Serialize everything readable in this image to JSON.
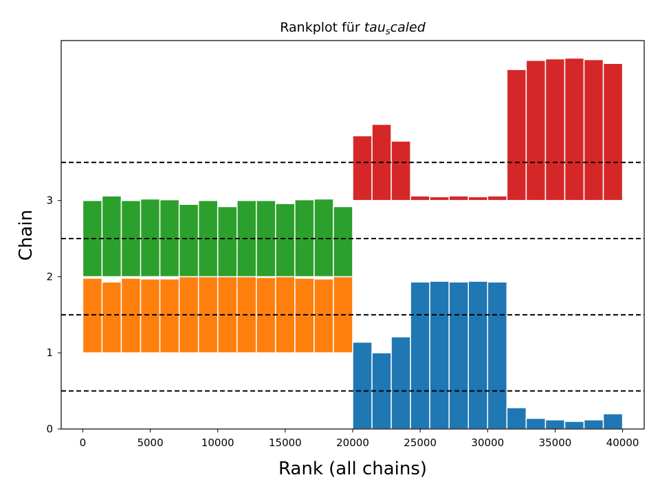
{
  "chart_data": {
    "type": "bar",
    "title_prefix": "Rankplot für ",
    "title_var": "tau",
    "title_sub": "s",
    "title_suffix": "caled",
    "xlabel": "Rank (all chains)",
    "ylabel": "Chain",
    "xlim": [
      -1600,
      41600
    ],
    "ylim": [
      0,
      5.1
    ],
    "xticks": [
      0,
      5000,
      10000,
      15000,
      20000,
      25000,
      30000,
      35000,
      40000
    ],
    "yticks": [
      0,
      1,
      2,
      3
    ],
    "reference_lines": [
      0.5,
      1.5,
      2.5,
      3.5
    ],
    "bin_edges": [
      0,
      1429,
      2857,
      4286,
      5714,
      7143,
      8571,
      10000,
      11429,
      12857,
      14286,
      15714,
      17143,
      18571,
      20000,
      21429,
      22857,
      24286,
      25714,
      27143,
      28571,
      30000,
      31429,
      32857,
      34286,
      35714,
      37143,
      38571,
      40000
    ],
    "series": [
      {
        "chain": 0,
        "color": "#1f77b4",
        "values": [
          0,
          0,
          0,
          0,
          0,
          0,
          0,
          0,
          0,
          0,
          0,
          0,
          0,
          0,
          1.14,
          1.0,
          1.21,
          1.93,
          1.94,
          1.93,
          1.94,
          1.93,
          0.28,
          0.14,
          0.12,
          0.1,
          0.12,
          0.2
        ]
      },
      {
        "chain": 1,
        "color": "#ff7f0e",
        "values": [
          1.98,
          1.93,
          1.98,
          1.97,
          1.97,
          2.0,
          2.0,
          2.0,
          2.0,
          1.99,
          2.0,
          1.98,
          1.97,
          2.0,
          0,
          0,
          0,
          0,
          0,
          0,
          0,
          0,
          0,
          0,
          0,
          0,
          0,
          0
        ]
      },
      {
        "chain": 2,
        "color": "#2ca02c",
        "values": [
          3.0,
          3.06,
          3.0,
          3.02,
          3.01,
          2.95,
          3.0,
          2.92,
          3.0,
          3.0,
          2.96,
          3.01,
          3.02,
          2.92,
          0,
          0,
          0,
          0,
          0,
          0,
          0,
          0,
          0,
          0,
          0,
          0,
          0,
          0
        ]
      },
      {
        "chain": 3,
        "color": "#d62728",
        "values": [
          0,
          0,
          0,
          0,
          0,
          0,
          0,
          0,
          0,
          0,
          0,
          0,
          0,
          0,
          3.85,
          4.0,
          3.78,
          3.06,
          3.05,
          3.06,
          3.05,
          3.06,
          4.72,
          4.84,
          4.86,
          4.87,
          4.85,
          4.8
        ]
      }
    ]
  }
}
